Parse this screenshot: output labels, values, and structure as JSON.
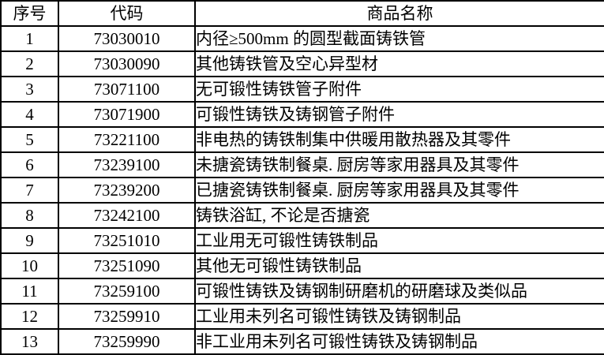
{
  "colors": {
    "border": "#000000",
    "text": "#000000",
    "background": "#ffffff"
  },
  "table": {
    "columns": [
      {
        "key": "index",
        "label": "序号"
      },
      {
        "key": "code",
        "label": "代码"
      },
      {
        "key": "name",
        "label": "商品名称"
      }
    ],
    "rows": [
      {
        "index": "1",
        "code": "73030010",
        "name": "内径≥500mm 的圆型截面铸铁管"
      },
      {
        "index": "2",
        "code": "73030090",
        "name": "其他铸铁管及空心异型材"
      },
      {
        "index": "3",
        "code": "73071100",
        "name": "无可锻性铸铁管子附件"
      },
      {
        "index": "4",
        "code": "73071900",
        "name": "可锻性铸铁及铸钢管子附件"
      },
      {
        "index": "5",
        "code": "73221100",
        "name": "非电热的铸铁制集中供暖用散热器及其零件"
      },
      {
        "index": "6",
        "code": "73239100",
        "name": "未搪瓷铸铁制餐桌. 厨房等家用器具及其零件"
      },
      {
        "index": "7",
        "code": "73239200",
        "name": "已搪瓷铸铁制餐桌. 厨房等家用器具及其零件"
      },
      {
        "index": "8",
        "code": "73242100",
        "name": "铸铁浴缸, 不论是否搪瓷"
      },
      {
        "index": "9",
        "code": "73251010",
        "name": "工业用无可锻性铸铁制品"
      },
      {
        "index": "10",
        "code": "73251090",
        "name": "其他无可锻性铸铁制品"
      },
      {
        "index": "11",
        "code": "73259100",
        "name": "可锻性铸铁及铸钢制研磨机的研磨球及类似品"
      },
      {
        "index": "12",
        "code": "73259910",
        "name": "工业用未列名可锻性铸铁及铸钢制品"
      },
      {
        "index": "13",
        "code": "73259990",
        "name": "非工业用未列名可锻性铸铁及铸钢制品"
      }
    ]
  }
}
